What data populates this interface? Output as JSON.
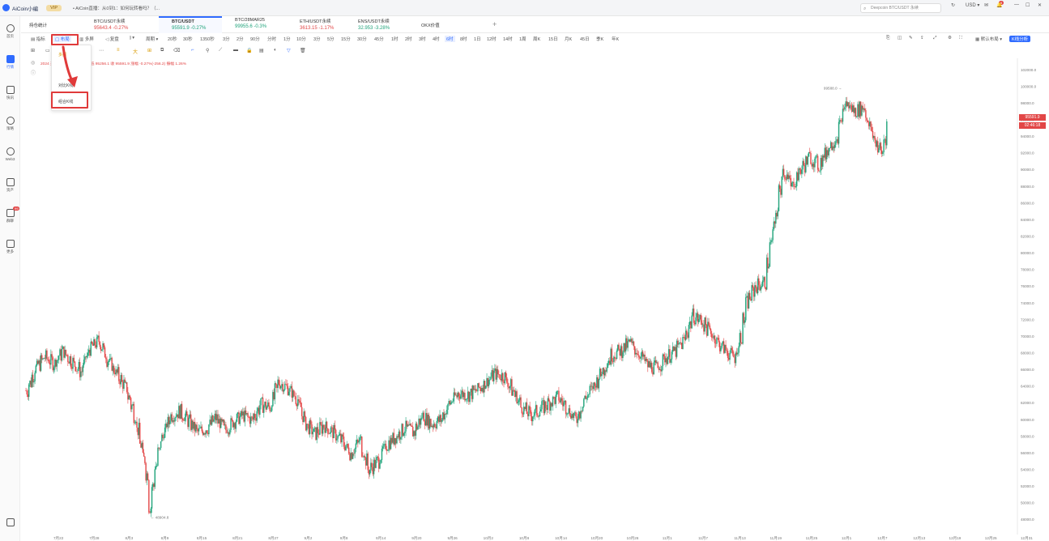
{
  "app": {
    "name": "AiCoin小编",
    "vip": "VIP",
    "promo": "• AiCoin直播：从0到1：如何玩转看吗？（..."
  },
  "search": {
    "placeholder": "Deepcoin BTC/USDT 永续"
  },
  "currency": "USD",
  "notify_count": "8",
  "sidebar": {
    "items": [
      {
        "label": "首页",
        "icon": "home-icon"
      },
      {
        "label": "行情",
        "icon": "chart-icon"
      },
      {
        "label": "快讯",
        "icon": "news-icon"
      },
      {
        "label": "策略",
        "icon": "robot-icon"
      },
      {
        "label": "Web3",
        "icon": "web3-icon"
      },
      {
        "label": "资产",
        "icon": "wallet-icon"
      },
      {
        "label": "群聊",
        "icon": "chat-icon",
        "badge": "99"
      },
      {
        "label": "更多",
        "icon": "more-icon"
      }
    ]
  },
  "tabs": [
    {
      "name": "持仓统计",
      "price": "",
      "change": ""
    },
    {
      "name": "BTC/USDT永续",
      "price": "95643.4",
      "change": "-0.27%"
    },
    {
      "name": "BTC/USDT",
      "price": "95591.9",
      "change": "-0.27%"
    },
    {
      "name": "BTC/28MAR25",
      "price": "99955.6",
      "change": "-0.3%"
    },
    {
      "name": "ETH/USDT永续",
      "price": "3613.15",
      "change": "-1.17%"
    },
    {
      "name": "ENS/USDT永续",
      "price": "32.953",
      "change": "-3.28%"
    },
    {
      "name": "OKX价值",
      "price": "",
      "change": ""
    }
  ],
  "toolbar": {
    "indicator": "指标",
    "template": "布局",
    "multi": "多屏",
    "replay": "复盘",
    "period": "周期",
    "periods": [
      "20秒",
      "30秒",
      "1350秒",
      "3分",
      "2分",
      "90分",
      "分时",
      "1分",
      "10分",
      "3分",
      "5分",
      "15分",
      "30分",
      "45分",
      "1时",
      "2时",
      "3时",
      "4时",
      "6时",
      "8时",
      "1日",
      "12时",
      "14时",
      "1周",
      "周K",
      "15日",
      "月K",
      "45日",
      "季K",
      "年K"
    ],
    "active_period": "6时",
    "default_layout": "默认布局",
    "k_analysis": "K线分析"
  },
  "menu": {
    "item1": "多图",
    "item2": "对比K线",
    "item3": "组合K线"
  },
  "ohlc": "2024 开 95848.1  高 96567.7  低 95256.1  收 95591.9  涨幅 -0.27%(-256.2)  振幅 1.26%",
  "price_tag": {
    "price": "95591.9",
    "countdown": "02:46:18"
  },
  "chart_data": {
    "type": "candlestick",
    "x_labels": [
      "7月22",
      "7月28",
      "8月3",
      "8月9",
      "8月15",
      "8月21",
      "8月27",
      "9月2",
      "9月8",
      "9月14",
      "9月20",
      "9月26",
      "10月2",
      "10月8",
      "10月14",
      "10月20",
      "10月26",
      "11月1",
      "11月7",
      "11月13",
      "11月19",
      "11月25",
      "12月1",
      "12月7",
      "12月13",
      "12月19",
      "12月25",
      "12月31"
    ],
    "y_ticks": [
      102000,
      100000,
      98000,
      96000,
      94000,
      92000,
      90000,
      88000,
      86000,
      84000,
      82000,
      80000,
      78000,
      76000,
      74000,
      72000,
      70000,
      68000,
      66000,
      64000,
      62000,
      60000,
      58000,
      56000,
      54000,
      52000,
      50000,
      48000
    ],
    "y_tick_labels": [
      "102000.0",
      "100000.0",
      "98000.0",
      "96000.0",
      "94000.0",
      "92000.0",
      "90000.0",
      "88000.0",
      "86000.0",
      "84000.0",
      "82000.0",
      "80000.0",
      "78000.0",
      "76000.0",
      "74000.0",
      "72000.0",
      "70000.0",
      "68000.0",
      "66000.0",
      "64000.0",
      "62000.0",
      "60000.0",
      "58000.0",
      "56000.0",
      "54000.0",
      "52000.0",
      "50000.0",
      "48000.0"
    ],
    "ylim": [
      47000,
      103000
    ],
    "high_label": "99588.0",
    "low_label": "48904.8",
    "up_color": "#1fa37a",
    "down_color": "#e24646",
    "close_path": [
      [
        0,
        63500
      ],
      [
        3,
        66200
      ],
      [
        6,
        67500
      ],
      [
        9,
        66800
      ],
      [
        12,
        68200
      ],
      [
        15,
        67000
      ],
      [
        18,
        65800
      ],
      [
        21,
        68500
      ],
      [
        24,
        69500
      ],
      [
        27,
        67200
      ],
      [
        30,
        65500
      ],
      [
        33,
        63800
      ],
      [
        36,
        60500
      ],
      [
        38,
        57000
      ],
      [
        40,
        53500
      ],
      [
        41,
        49500
      ],
      [
        43,
        54500
      ],
      [
        45,
        57800
      ],
      [
        48,
        60500
      ],
      [
        51,
        61000
      ],
      [
        54,
        59800
      ],
      [
        57,
        58500
      ],
      [
        60,
        59000
      ],
      [
        63,
        60200
      ],
      [
        66,
        58800
      ],
      [
        69,
        59800
      ],
      [
        72,
        60500
      ],
      [
        75,
        60000
      ],
      [
        78,
        61800
      ],
      [
        81,
        61500
      ],
      [
        84,
        64500
      ],
      [
        87,
        63800
      ],
      [
        90,
        62500
      ],
      [
        93,
        59500
      ],
      [
        96,
        58300
      ],
      [
        99,
        59300
      ],
      [
        102,
        58500
      ],
      [
        105,
        57500
      ],
      [
        108,
        56000
      ],
      [
        111,
        57500
      ],
      [
        114,
        54000
      ],
      [
        117,
        55000
      ],
      [
        120,
        57000
      ],
      [
        123,
        58000
      ],
      [
        126,
        59000
      ],
      [
        129,
        58500
      ],
      [
        132,
        60500
      ],
      [
        135,
        59500
      ],
      [
        138,
        60000
      ],
      [
        141,
        62000
      ],
      [
        144,
        63200
      ],
      [
        147,
        63000
      ],
      [
        150,
        63500
      ],
      [
        153,
        64500
      ],
      [
        156,
        65500
      ],
      [
        159,
        65200
      ],
      [
        162,
        63500
      ],
      [
        165,
        61500
      ],
      [
        168,
        60500
      ],
      [
        171,
        61200
      ],
      [
        174,
        62000
      ],
      [
        177,
        62700
      ],
      [
        180,
        61500
      ],
      [
        183,
        60000
      ],
      [
        186,
        62500
      ],
      [
        189,
        64000
      ],
      [
        192,
        66000
      ],
      [
        195,
        67800
      ],
      [
        198,
        68300
      ],
      [
        201,
        69200
      ],
      [
        204,
        68000
      ],
      [
        207,
        66500
      ],
      [
        210,
        66200
      ],
      [
        213,
        67500
      ],
      [
        216,
        68200
      ],
      [
        219,
        69500
      ],
      [
        222,
        72500
      ],
      [
        225,
        71800
      ],
      [
        228,
        70500
      ],
      [
        231,
        69000
      ],
      [
        234,
        68000
      ],
      [
        236,
        67500
      ],
      [
        238,
        70000
      ],
      [
        240,
        74000
      ],
      [
        243,
        76000
      ],
      [
        246,
        76500
      ],
      [
        248,
        81000
      ],
      [
        250,
        85000
      ],
      [
        252,
        90000
      ],
      [
        255,
        88000
      ],
      [
        258,
        90000
      ],
      [
        261,
        91500
      ],
      [
        264,
        90500
      ],
      [
        267,
        92500
      ],
      [
        270,
        94000
      ],
      [
        273,
        98000
      ],
      [
        276,
        97000
      ],
      [
        279,
        97500
      ],
      [
        282,
        94000
      ],
      [
        285,
        92000
      ],
      [
        287,
        95591
      ]
    ],
    "x_max": 330
  }
}
